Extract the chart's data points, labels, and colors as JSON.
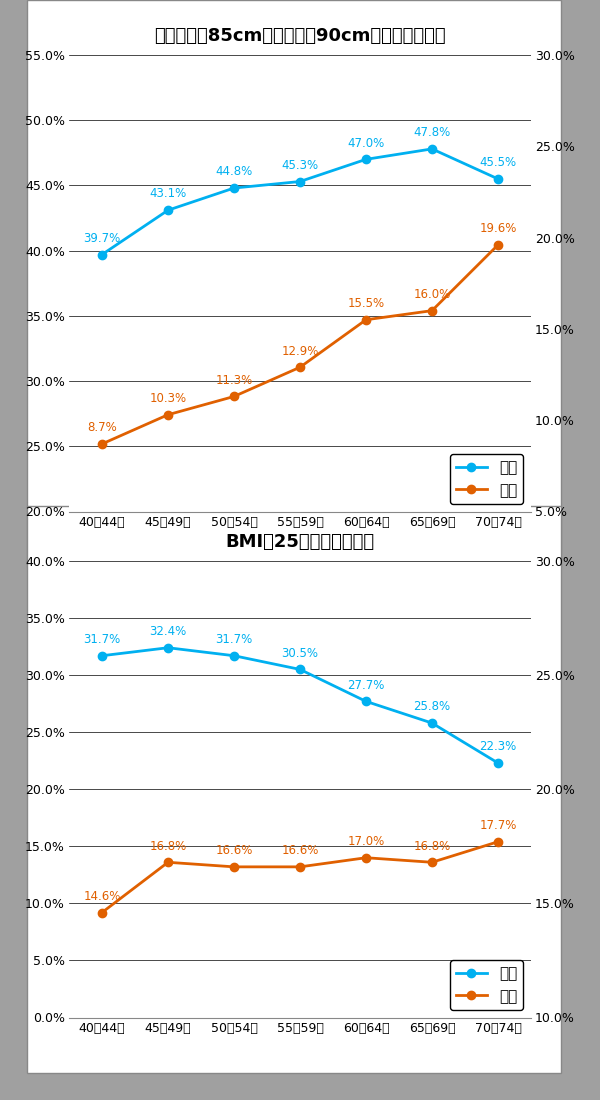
{
  "categories": [
    "40〜44歳",
    "45〜49歳",
    "50〜54歳",
    "55〜59歳",
    "60〜64歳",
    "65〜69歳",
    "70〜74歳"
  ],
  "chart1": {
    "title": "腹囲：男性85cm以上、女性90cm以上の該当者率",
    "male": [
      39.7,
      43.1,
      44.8,
      45.3,
      47.0,
      47.8,
      45.5
    ],
    "female": [
      8.7,
      10.3,
      11.3,
      12.9,
      15.5,
      16.0,
      19.6
    ],
    "left_ylim": [
      20.0,
      55.0
    ],
    "right_ylim": [
      5.0,
      30.0
    ],
    "left_yticks": [
      20.0,
      25.0,
      30.0,
      35.0,
      40.0,
      45.0,
      50.0,
      55.0
    ],
    "right_yticks": [
      5.0,
      10.0,
      15.0,
      20.0,
      25.0,
      30.0
    ]
  },
  "chart2": {
    "title": "BMI：25以上の該当者率",
    "male": [
      31.7,
      32.4,
      31.7,
      30.5,
      27.7,
      25.8,
      22.3
    ],
    "female": [
      14.6,
      16.8,
      16.6,
      16.6,
      17.0,
      16.8,
      17.7
    ],
    "left_ylim": [
      0.0,
      40.0
    ],
    "right_ylim": [
      10.0,
      30.0
    ],
    "left_yticks": [
      0.0,
      5.0,
      10.0,
      15.0,
      20.0,
      25.0,
      30.0,
      35.0,
      40.0
    ],
    "right_yticks": [
      10.0,
      15.0,
      20.0,
      25.0,
      30.0
    ]
  },
  "male_color": "#00B0F0",
  "female_color": "#E06000",
  "legend_male": "男性",
  "legend_female": "女性",
  "outer_bg": "#A0A0A0",
  "panel_bg": "#FFFFFF",
  "grid_color": "#000000",
  "title_fontsize": 13,
  "label_fontsize": 9,
  "annot_fontsize": 8.5,
  "legend_fontsize": 11
}
